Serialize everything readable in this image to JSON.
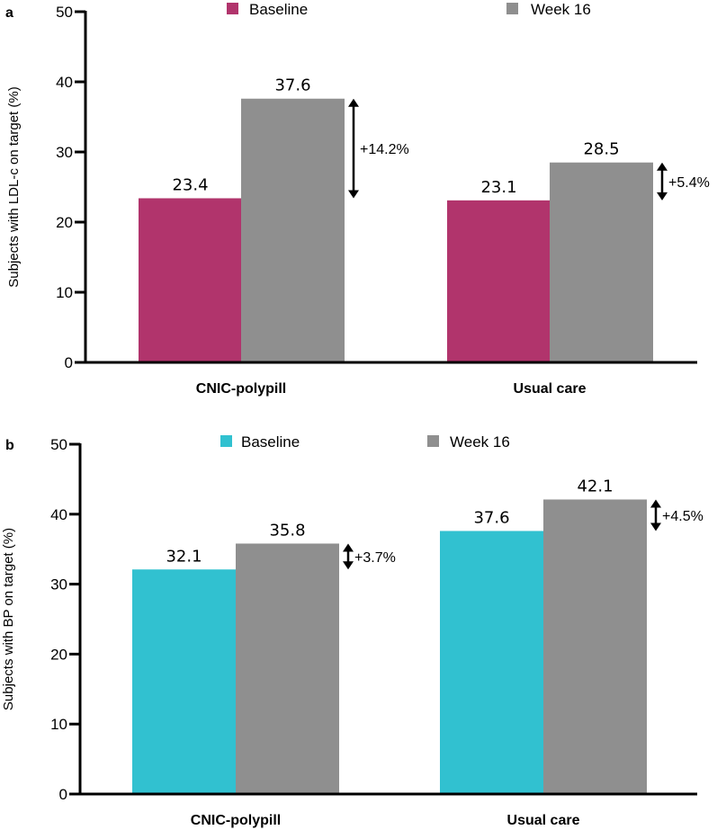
{
  "chart_data": [
    {
      "type": "bar",
      "panel_label": "a",
      "ylabel": "Subjects with LDL-c on target (%)",
      "ylim": [
        0,
        50
      ],
      "yticks": [
        "0",
        "10",
        "20",
        "30",
        "40",
        "50"
      ],
      "categories": [
        "CNIC-polypill",
        "Usual care"
      ],
      "series": [
        {
          "name": "Baseline",
          "color": "#b1346c",
          "values": [
            23.4,
            23.1
          ],
          "labels": [
            "23.4",
            "23.1"
          ]
        },
        {
          "name": "Week 16",
          "color": "#8f8f8f",
          "values": [
            37.6,
            28.5
          ],
          "labels": [
            "37.6",
            "28.5"
          ]
        }
      ],
      "annotations": [
        "+14.2%",
        "+5.4%"
      ],
      "legend": "top"
    },
    {
      "type": "bar",
      "panel_label": "b",
      "ylabel": "Subjects with BP on target (%)",
      "ylim": [
        0,
        50
      ],
      "yticks": [
        "0",
        "10",
        "20",
        "30",
        "40",
        "50"
      ],
      "categories": [
        "CNIC-polypill",
        "Usual care"
      ],
      "series": [
        {
          "name": "Baseline",
          "color": "#31c1d0",
          "values": [
            32.1,
            37.6
          ],
          "labels": [
            "32.1",
            "37.6"
          ]
        },
        {
          "name": "Week 16",
          "color": "#8f8f8f",
          "values": [
            35.8,
            42.1
          ],
          "labels": [
            "35.8",
            "42.1"
          ]
        }
      ],
      "annotations": [
        "+3.7%",
        "+4.5%"
      ],
      "legend": "top"
    }
  ]
}
